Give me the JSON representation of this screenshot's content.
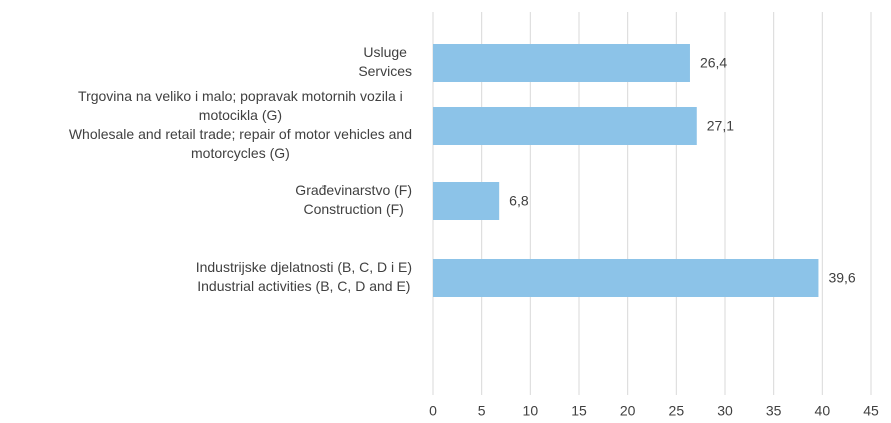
{
  "chart_data": {
    "type": "barh",
    "categories": [
      [
        "Usluge",
        "Services"
      ],
      [
        "Trgovina na veliko i malo; popravak motornih vozila i",
        "motocikla  (G)",
        "Wholesale and retail trade; repair of motor vehicles and",
        "motorcycles  (G)"
      ],
      [
        "Građevinarstvo (F)",
        "Construction (F)"
      ],
      [
        "Industrijske djelatnosti (B, C, D i E)",
        "Industrial activities (B, C, D and E)"
      ]
    ],
    "values": [
      26.4,
      27.1,
      6.8,
      39.6
    ],
    "value_labels": [
      "26,4",
      "27,1",
      "6,8",
      "39,6"
    ],
    "color": "#8cc3e8",
    "xlim": [
      0,
      45
    ],
    "xticks": [
      0,
      5,
      10,
      15,
      20,
      25,
      30,
      35,
      40,
      45
    ],
    "grid": true
  }
}
